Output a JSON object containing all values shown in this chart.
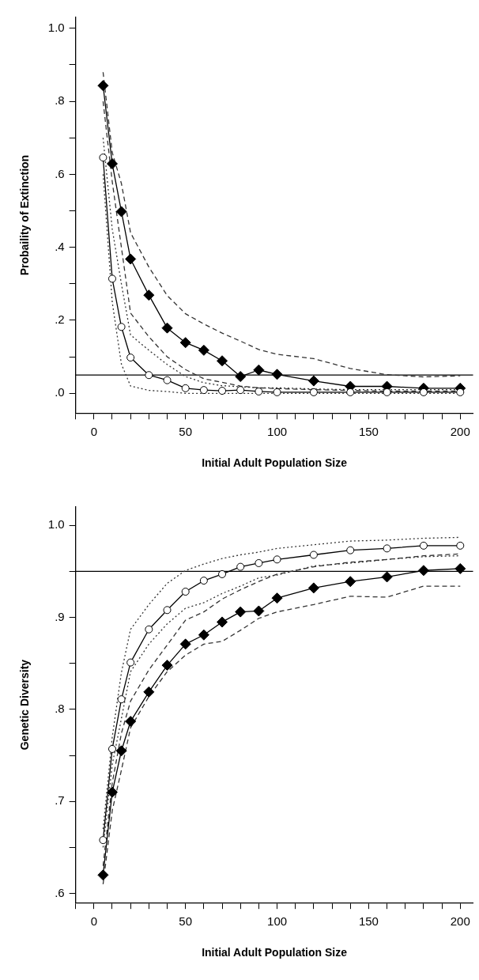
{
  "chart_data": [
    {
      "type": "line",
      "xlabel": "Initial Adult Population Size",
      "ylabel": "Probaility of Extinction",
      "x": [
        5,
        10,
        15,
        20,
        30,
        40,
        50,
        60,
        70,
        80,
        90,
        100,
        120,
        140,
        160,
        180,
        200
      ],
      "xlim": [
        -10,
        207
      ],
      "xticks": [
        {
          "value": -10,
          "label": null
        },
        0,
        {
          "value": 10,
          "label": null
        },
        {
          "value": 20,
          "label": null
        },
        {
          "value": 30,
          "label": null
        },
        {
          "value": 40,
          "label": null
        },
        50,
        {
          "value": 60,
          "label": null
        },
        {
          "value": 70,
          "label": null
        },
        {
          "value": 80,
          "label": null
        },
        {
          "value": 90,
          "label": null
        },
        100,
        {
          "value": 110,
          "label": null
        },
        {
          "value": 120,
          "label": null
        },
        {
          "value": 130,
          "label": null
        },
        {
          "value": 140,
          "label": null
        },
        150,
        {
          "value": 160,
          "label": null
        },
        {
          "value": 170,
          "label": null
        },
        {
          "value": 180,
          "label": null
        },
        {
          "value": 190,
          "label": null
        },
        200
      ],
      "ylim": [
        -0.054,
        1.03
      ],
      "yticks": [
        {
          "value": 0,
          "label": ".0"
        },
        {
          "value": 0.1,
          "label": null
        },
        {
          "value": 0.2,
          "label": ".2"
        },
        {
          "value": 0.3,
          "label": null
        },
        {
          "value": 0.4,
          "label": ".4"
        },
        {
          "value": 0.5,
          "label": null
        },
        {
          "value": 0.6,
          "label": ".6"
        },
        {
          "value": 0.7,
          "label": null
        },
        {
          "value": 0.8,
          "label": ".8"
        },
        {
          "value": 0.9,
          "label": null
        },
        {
          "value": 1,
          "label": "1.0"
        }
      ],
      "grid": false,
      "legend": false,
      "ref_lines": [
        {
          "axis": "y",
          "value": 0.05,
          "color": "#000000",
          "line_style": "solid"
        }
      ],
      "series": [
        {
          "color": "#333333",
          "marker": "none",
          "line_style": "dashed",
          "values": [
            0.88,
            0.66,
            0.575,
            0.44,
            0.346,
            0.268,
            0.218,
            0.19,
            0.165,
            0.143,
            0.12,
            0.107,
            0.095,
            0.068,
            0.051,
            0.045,
            0.048
          ]
        },
        {
          "color": "#333333",
          "marker": "none",
          "line_style": "dashed",
          "values": [
            0.8,
            0.58,
            0.4,
            0.22,
            0.155,
            0.1,
            0.065,
            0.04,
            0.03,
            0.02,
            0.015,
            0.013,
            0.01,
            0.008,
            0.006,
            0.006,
            0.006
          ]
        },
        {
          "color": "#333333",
          "marker": "none",
          "line_style": "dotted",
          "values": [
            0.7,
            0.45,
            0.3,
            0.16,
            0.118,
            0.079,
            0.046,
            0.029,
            0.021,
            0.018,
            0.015,
            0.015,
            0.012,
            0.01,
            0.01,
            0.01,
            0.01
          ]
        },
        {
          "color": "#333333",
          "marker": "none",
          "line_style": "dotted",
          "values": [
            0.6,
            0.25,
            0.08,
            0.02,
            0.008,
            0.005,
            0,
            0,
            0,
            0,
            0,
            0,
            0,
            0,
            0,
            0,
            0
          ]
        },
        {
          "color": "#000000",
          "marker": "diamond",
          "line_style": "solid",
          "values": [
            0.843,
            0.629,
            0.498,
            0.368,
            0.269,
            0.179,
            0.139,
            0.118,
            0.089,
            0.046,
            0.064,
            0.052,
            0.034,
            0.019,
            0.019,
            0.014,
            0.014
          ]
        },
        {
          "color": "#000000",
          "marker": "circle",
          "line_style": "solid",
          "values": [
            0.646,
            0.314,
            0.182,
            0.098,
            0.05,
            0.036,
            0.014,
            0.009,
            0.007,
            0.009,
            0.005,
            0.003,
            0.003,
            0.003,
            0.003,
            0.003,
            0.003
          ]
        }
      ]
    },
    {
      "type": "line",
      "xlabel": "Initial Adult Population Size",
      "ylabel": "Genetic Diversity",
      "x": [
        5,
        10,
        15,
        20,
        30,
        40,
        50,
        60,
        70,
        80,
        90,
        100,
        120,
        140,
        160,
        180,
        200
      ],
      "xlim": [
        -10,
        207
      ],
      "xticks": [
        {
          "value": -10,
          "label": null
        },
        0,
        {
          "value": 10,
          "label": null
        },
        {
          "value": 20,
          "label": null
        },
        {
          "value": 30,
          "label": null
        },
        {
          "value": 40,
          "label": null
        },
        50,
        {
          "value": 60,
          "label": null
        },
        {
          "value": 70,
          "label": null
        },
        {
          "value": 80,
          "label": null
        },
        {
          "value": 90,
          "label": null
        },
        100,
        {
          "value": 110,
          "label": null
        },
        {
          "value": 120,
          "label": null
        },
        {
          "value": 130,
          "label": null
        },
        {
          "value": 140,
          "label": null
        },
        150,
        {
          "value": 160,
          "label": null
        },
        {
          "value": 170,
          "label": null
        },
        {
          "value": 180,
          "label": null
        },
        {
          "value": 190,
          "label": null
        },
        200
      ],
      "ylim": [
        0.59,
        1.02
      ],
      "yticks": [
        {
          "value": 0.6,
          "label": ".6"
        },
        {
          "value": 0.65,
          "label": null
        },
        {
          "value": 0.7,
          "label": ".7"
        },
        {
          "value": 0.75,
          "label": null
        },
        {
          "value": 0.8,
          "label": ".8"
        },
        {
          "value": 0.85,
          "label": null
        },
        {
          "value": 0.9,
          "label": ".9"
        },
        {
          "value": 0.95,
          "label": null
        },
        {
          "value": 1,
          "label": "1.0"
        }
      ],
      "grid": false,
      "legend": false,
      "ref_lines": [
        {
          "axis": "y",
          "value": 0.95,
          "color": "#000000",
          "line_style": "solid"
        }
      ],
      "series": [
        {
          "color": "#333333",
          "marker": "none",
          "line_style": "dashed",
          "values": [
            0.63,
            0.72,
            0.774,
            0.809,
            0.843,
            0.87,
            0.897,
            0.906,
            0.92,
            0.93,
            0.939,
            0.947,
            0.955,
            0.96,
            0.963,
            0.967,
            0.969
          ]
        },
        {
          "color": "#333333",
          "marker": "none",
          "line_style": "dashed",
          "values": [
            0.61,
            0.69,
            0.734,
            0.78,
            0.814,
            0.841,
            0.859,
            0.871,
            0.874,
            0.886,
            0.899,
            0.906,
            0.914,
            0.923,
            0.922,
            0.934,
            0.934
          ]
        },
        {
          "color": "#333333",
          "marker": "none",
          "line_style": "dotted",
          "values": [
            0.67,
            0.77,
            0.84,
            0.887,
            0.914,
            0.937,
            0.951,
            0.958,
            0.964,
            0.968,
            0.971,
            0.975,
            0.979,
            0.983,
            0.984,
            0.986,
            0.987
          ]
        },
        {
          "color": "#333333",
          "marker": "none",
          "line_style": "dotted",
          "values": [
            0.65,
            0.74,
            0.79,
            0.841,
            0.871,
            0.893,
            0.91,
            0.916,
            0.926,
            0.934,
            0.943,
            0.946,
            0.956,
            0.959,
            0.963,
            0.966,
            0.967
          ]
        },
        {
          "color": "#000000",
          "marker": "diamond",
          "line_style": "solid",
          "values": [
            0.62,
            0.71,
            0.755,
            0.787,
            0.819,
            0.848,
            0.871,
            0.881,
            0.895,
            0.906,
            0.907,
            0.921,
            0.932,
            0.939,
            0.944,
            0.951,
            0.953
          ]
        },
        {
          "color": "#000000",
          "marker": "circle",
          "line_style": "solid",
          "values": [
            0.658,
            0.757,
            0.811,
            0.851,
            0.887,
            0.908,
            0.928,
            0.94,
            0.947,
            0.955,
            0.959,
            0.963,
            0.968,
            0.973,
            0.975,
            0.978,
            0.978
          ]
        }
      ]
    }
  ]
}
